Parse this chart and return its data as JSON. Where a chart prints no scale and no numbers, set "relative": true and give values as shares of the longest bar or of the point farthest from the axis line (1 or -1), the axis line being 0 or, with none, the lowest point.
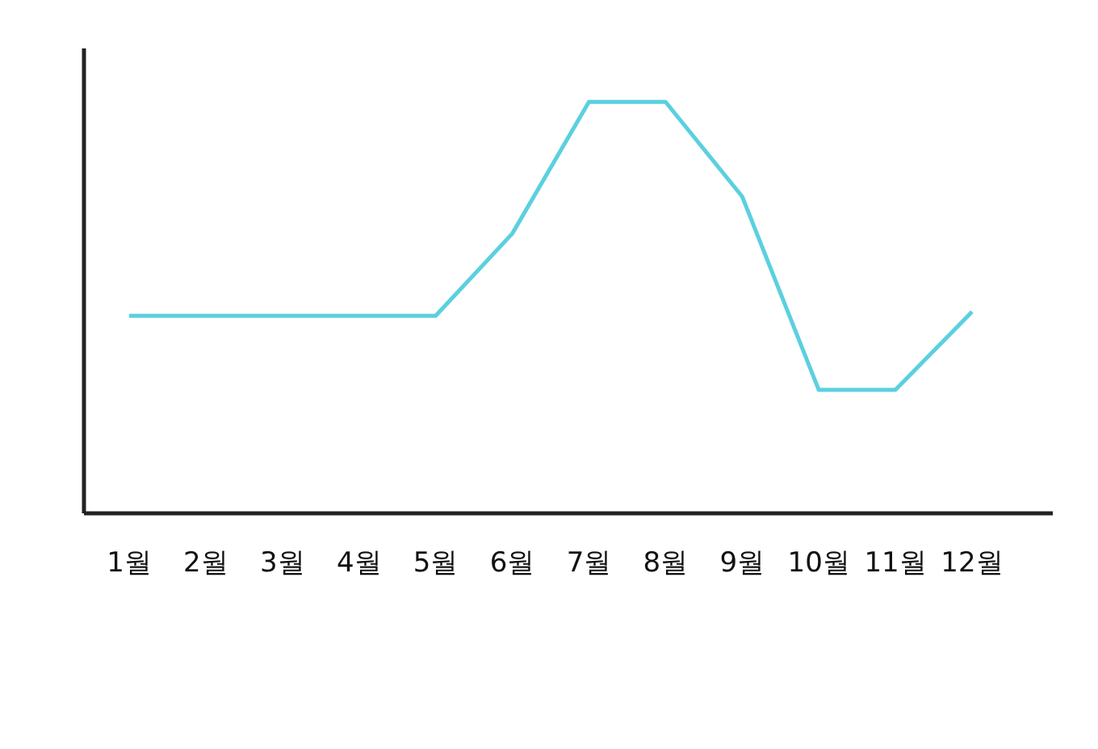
{
  "chart_data": {
    "type": "line",
    "relative": true,
    "categories": [
      "1월",
      "2월",
      "3월",
      "4월",
      "5월",
      "6월",
      "7월",
      "8월",
      "9월",
      "10월",
      "11월",
      "12월"
    ],
    "series": [
      {
        "color": "#5bd0e0",
        "values": [
          0.48,
          0.48,
          0.48,
          0.48,
          0.48,
          0.68,
          1,
          1,
          0.77,
          0.3,
          0.3,
          0.49
        ]
      }
    ],
    "grid": false,
    "legend": false,
    "marker": "none",
    "line_style": "solid"
  }
}
